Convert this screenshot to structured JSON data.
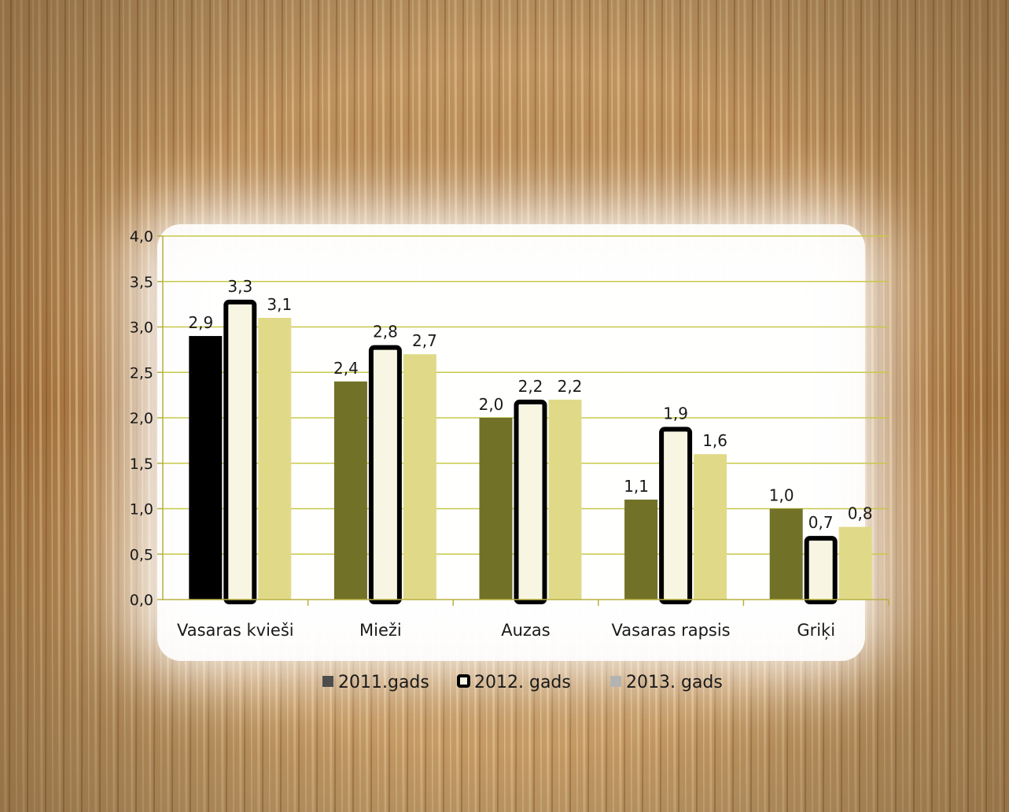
{
  "colors": {
    "background_wheat": "#b98a55",
    "panel": "#ffffff",
    "gridline": "#c8c84a",
    "axis": "#b8b040",
    "series_2011": "#727128",
    "series_2011_first": "#000000",
    "series_2012_fill": "#f8f6e3",
    "series_2012_border": "#000000",
    "series_2013": "#e0da88",
    "legend_2011": "#4d4d4d",
    "legend_2013": "#b3b3b3"
  },
  "chart_data": {
    "type": "bar",
    "categories": [
      "Vasaras kvieši",
      "Mieži",
      "Auzas",
      "Vasaras rapsis",
      "Griķi"
    ],
    "series": [
      {
        "name": "2011.gads",
        "values": [
          2.9,
          2.4,
          2.0,
          1.1,
          1.0
        ],
        "labels": [
          "2,9",
          "2,4",
          "2,0",
          "1,1",
          "1,0"
        ]
      },
      {
        "name": "2012. gads",
        "values": [
          3.3,
          2.8,
          2.2,
          1.9,
          0.7
        ],
        "labels": [
          "3,3",
          "2,8",
          "2,2",
          "1,9",
          "0,7"
        ]
      },
      {
        "name": "2013. gads",
        "values": [
          3.1,
          2.7,
          2.2,
          1.6,
          0.8
        ],
        "labels": [
          "3,1",
          "2,7",
          "2,2",
          "1,6",
          "0,8"
        ]
      }
    ],
    "ylim": [
      0,
      4.0
    ],
    "yticks": [
      {
        "value": 0,
        "label": "0,0"
      },
      {
        "value": 0.5,
        "label": "0,5"
      },
      {
        "value": 1.0,
        "label": "1,0"
      },
      {
        "value": 1.5,
        "label": "1,5"
      },
      {
        "value": 2.0,
        "label": "2,0"
      },
      {
        "value": 2.5,
        "label": "2,5"
      },
      {
        "value": 3.0,
        "label": "3,0"
      },
      {
        "value": 3.5,
        "label": "3,5"
      },
      {
        "value": 4.0,
        "label": "4,0"
      }
    ],
    "grid": true,
    "legend": "bottom"
  }
}
